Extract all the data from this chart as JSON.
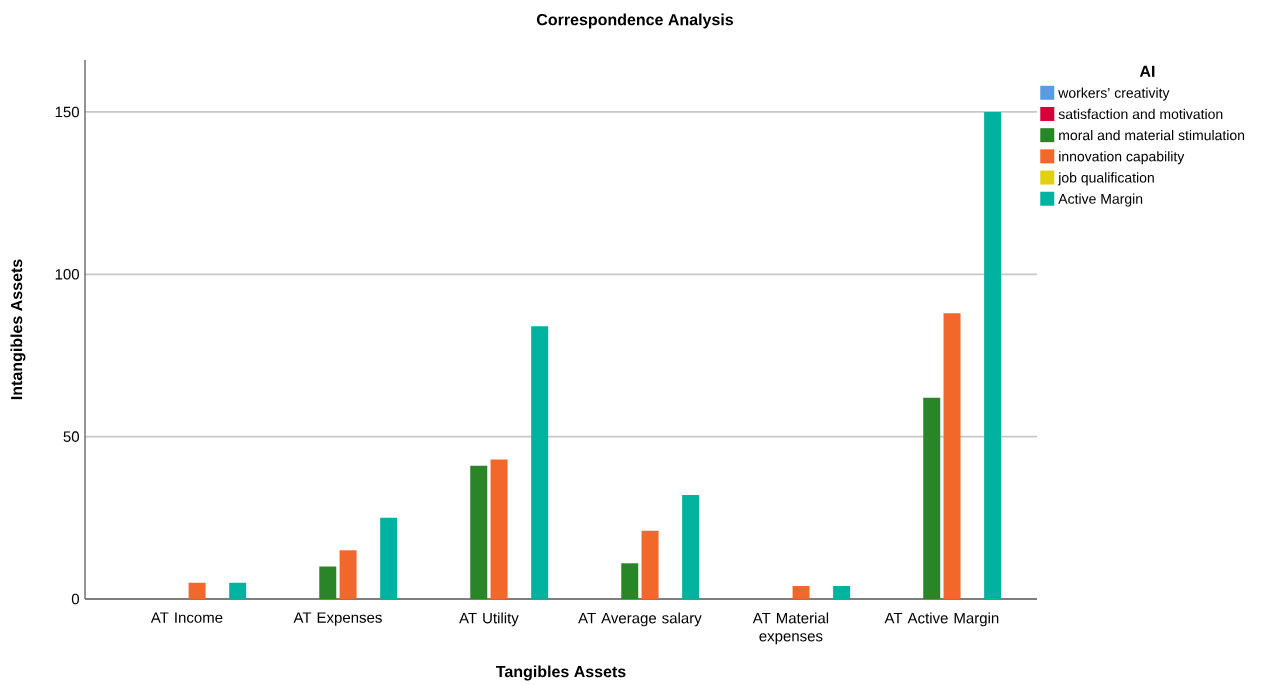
{
  "chart_data": {
    "type": "bar",
    "title": "Correspondence Analysis",
    "xlabel": "Tangibles Assets",
    "ylabel": "Intangibles Assets",
    "legend_title": "AI",
    "categories": [
      "AT Income",
      "AT Expenses",
      "AT Utility",
      "AT Average salary",
      "AT Material expenses",
      "AT Active Margin"
    ],
    "series": [
      {
        "name": "workers’ creativity",
        "color": "#5b9be0",
        "values": [
          0,
          0,
          0,
          0,
          0,
          0
        ]
      },
      {
        "name": "satisfaction and motivation",
        "color": "#d6003a",
        "values": [
          0,
          0,
          0,
          0,
          0,
          0
        ]
      },
      {
        "name": "moral and material stimulation",
        "color": "#2a8526",
        "values": [
          0,
          10,
          41,
          11,
          0,
          62
        ]
      },
      {
        "name": "innovation capability",
        "color": "#f2672a",
        "values": [
          5,
          15,
          43,
          21,
          4,
          88
        ]
      },
      {
        "name": "job qualification",
        "color": "#e0d210",
        "values": [
          0,
          0,
          0,
          0,
          0,
          0
        ]
      },
      {
        "name": "Active Margin",
        "color": "#00b3a0",
        "values": [
          5,
          25,
          84,
          32,
          4,
          150
        ]
      }
    ],
    "ylim": [
      0,
      166
    ],
    "yticks": [
      0,
      50,
      100,
      150
    ],
    "grid": "y",
    "legend": "top right"
  }
}
